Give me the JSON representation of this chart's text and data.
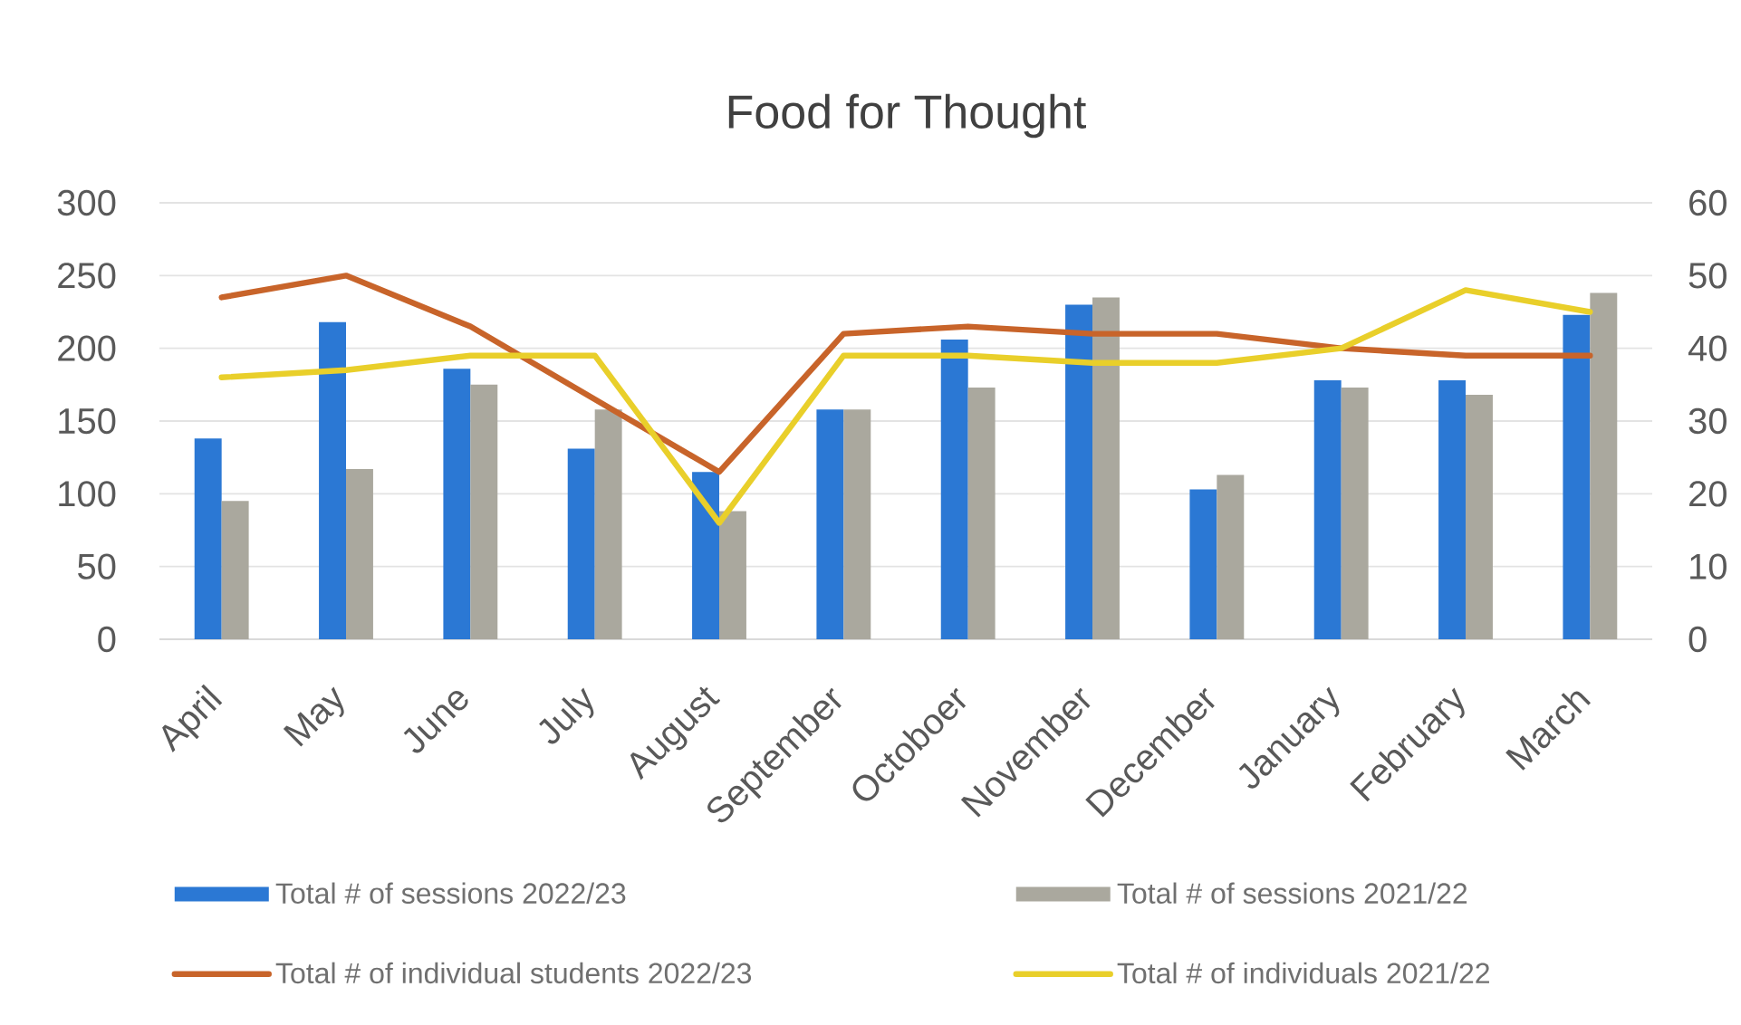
{
  "chart_data": {
    "type": "bar",
    "title": "Food for Thought",
    "categories": [
      "April",
      "May",
      "June",
      "July",
      "August",
      "September",
      "Octoboer",
      "November",
      "December",
      "January",
      "February",
      "March"
    ],
    "series": [
      {
        "name": "Total # of sessions 2022/23",
        "color": "#2b78d4",
        "values": [
          138,
          218,
          186,
          131,
          115,
          158,
          206,
          230,
          103,
          178,
          178,
          223
        ]
      },
      {
        "name": "Total # of sessions 2021/22",
        "color": "#aaa89e",
        "values": [
          95,
          117,
          175,
          158,
          88,
          158,
          173,
          235,
          113,
          173,
          168,
          238
        ]
      },
      {
        "name": "Total # of individual students 2022/23",
        "type": "line",
        "axis": "y2",
        "color": "#c8642a",
        "values": [
          47,
          50,
          43,
          33,
          23,
          42,
          43,
          42,
          42,
          40,
          39,
          39
        ]
      },
      {
        "name": "Total # of individuals 2021/22",
        "type": "line",
        "axis": "y2",
        "color": "#e9cf2a",
        "values": [
          36,
          37,
          39,
          39,
          16,
          39,
          39,
          38,
          38,
          40,
          48,
          45
        ]
      }
    ],
    "ylim": [
      0,
      300
    ],
    "yticks": [
      0,
      50,
      100,
      150,
      200,
      250,
      300
    ],
    "y2lim": [
      0,
      60
    ],
    "y2ticks": [
      0,
      10,
      20,
      30,
      40,
      50,
      60
    ],
    "grid": "y",
    "legend": "bottom"
  }
}
